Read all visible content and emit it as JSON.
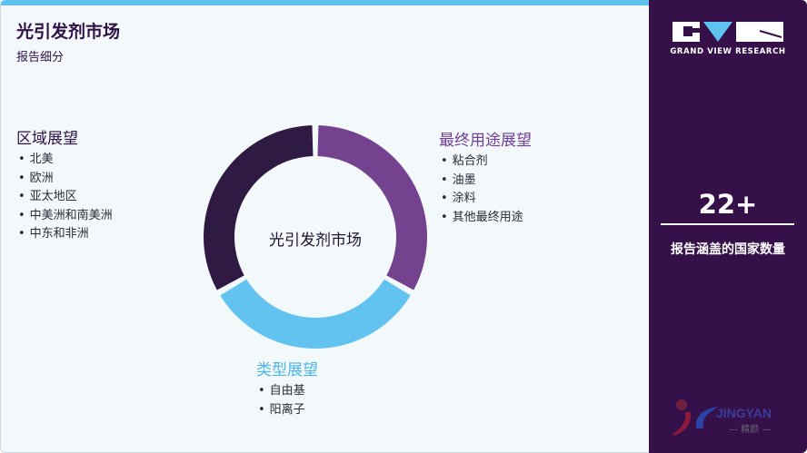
{
  "header": {
    "title": "光引发剂市场",
    "subtitle": "报告细分"
  },
  "center_label": "光引发剂市场",
  "groups": {
    "region": {
      "title": "区域展望",
      "color": "#2e1346",
      "items": [
        "北美",
        "欧洲",
        "亚太地区",
        "中美洲和南美洲",
        "中东和非洲"
      ]
    },
    "end_use": {
      "title": "最终用途展望",
      "color": "#6f3f96",
      "items": [
        "粘合剂",
        "油墨",
        "涂料",
        "其他最终用途"
      ]
    },
    "type": {
      "title": "类型展望",
      "color": "#4ab6ea",
      "items": [
        "自由基",
        "阳离子"
      ]
    }
  },
  "donut_segments": [
    {
      "group": "end_use",
      "color": "#75428f",
      "share": 0.3333
    },
    {
      "group": "type",
      "color": "#62c3f1",
      "share": 0.3333
    },
    {
      "group": "region",
      "color": "#2e1a42",
      "share": 0.3333
    }
  ],
  "sidebar": {
    "brand": "GRAND VIEW RESEARCH",
    "stat": "22+",
    "stat_caption": "报告涵盖的国家数量",
    "watermark": "JINGYAN 精颜"
  },
  "colors": {
    "sidebar_bg": "#351049",
    "accent": "#5ec4ef"
  }
}
